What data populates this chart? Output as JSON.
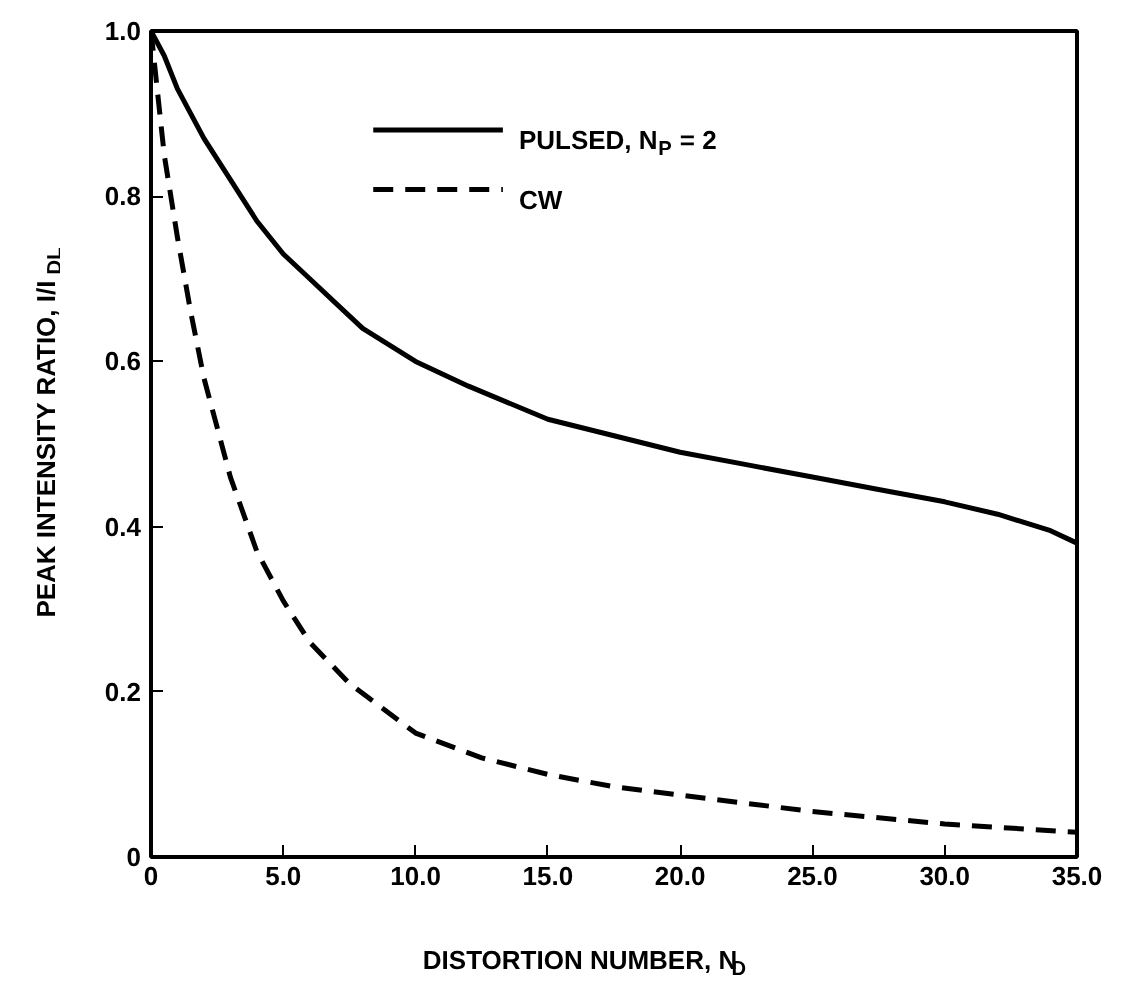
{
  "chart_data": {
    "type": "line",
    "xlabel": "DISTORTION NUMBER, N$_{D}$",
    "ylabel": "PEAK INTENSITY RATIO, I/I$_{DL}$",
    "xlim": [
      0,
      35
    ],
    "ylim": [
      0,
      1.0
    ],
    "xticks": [
      {
        "value": 0,
        "label": "0"
      },
      {
        "value": 5,
        "label": "5.0"
      },
      {
        "value": 10,
        "label": "10.0"
      },
      {
        "value": 15,
        "label": "15.0"
      },
      {
        "value": 20,
        "label": "20.0"
      },
      {
        "value": 25,
        "label": "25.0"
      },
      {
        "value": 30,
        "label": "30.0"
      },
      {
        "value": 35,
        "label": "35.0"
      }
    ],
    "yticks": [
      0,
      0.2,
      0.4,
      0.6,
      0.8,
      {
        "value": 1,
        "label": "1.0"
      }
    ],
    "legend": "top",
    "grid": false,
    "marker": "none",
    "series": [
      {
        "name": "PULSED, N$_{P}$ = 2",
        "color": "#000000",
        "line_style": "solid",
        "x": [
          0,
          0.5,
          1,
          2,
          3,
          4,
          5,
          6,
          7,
          8,
          9,
          10,
          12,
          15,
          17.5,
          20,
          22.5,
          25,
          27.5,
          30,
          32,
          34,
          35
        ],
        "values": [
          1.0,
          0.97,
          0.93,
          0.87,
          0.82,
          0.77,
          0.73,
          0.7,
          0.67,
          0.64,
          0.62,
          0.6,
          0.57,
          0.53,
          0.51,
          0.49,
          0.475,
          0.46,
          0.445,
          0.43,
          0.415,
          0.395,
          0.38
        ]
      },
      {
        "name": "CW",
        "color": "#000000",
        "line_style": "dashed",
        "x": [
          0,
          0.5,
          1,
          1.5,
          2,
          3,
          4,
          5,
          6,
          7.5,
          10,
          12.5,
          15,
          17.5,
          20,
          25,
          30,
          35
        ],
        "values": [
          1.0,
          0.85,
          0.75,
          0.66,
          0.58,
          0.46,
          0.37,
          0.31,
          0.26,
          0.21,
          0.15,
          0.12,
          0.1,
          0.085,
          0.075,
          0.055,
          0.04,
          0.03
        ]
      }
    ]
  }
}
